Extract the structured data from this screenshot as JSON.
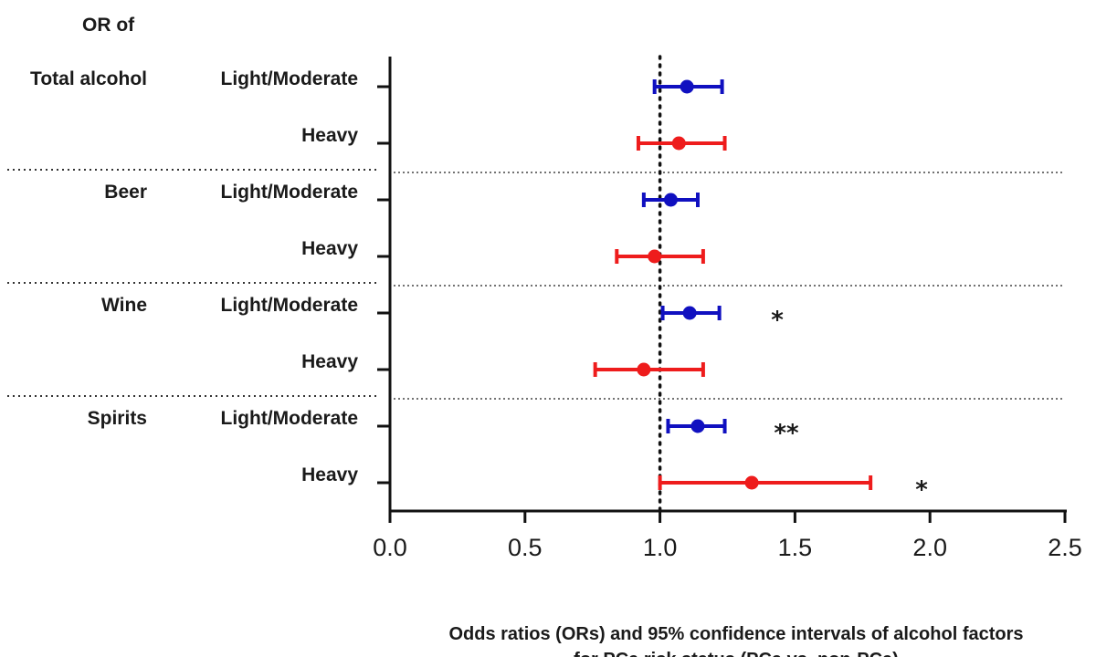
{
  "chart_data": {
    "type": "forest",
    "row_header": "OR of",
    "xlabel_lines": [
      "Odds ratios (ORs) and 95% confidence intervals of alcohol factors",
      "for PCa risk status (PCa vs. non-PCa)"
    ],
    "xlim": [
      0.0,
      2.5
    ],
    "xticks": [
      "0.0",
      "0.5",
      "1.0",
      "1.5",
      "2.0",
      "2.5"
    ],
    "reference_line": 1.0,
    "colors": {
      "light_moderate": "#1010c0",
      "heavy": "#ee1c1c"
    },
    "groups": [
      {
        "name": "Total alcohol",
        "rows": [
          {
            "label": "Light/Moderate",
            "or": 1.1,
            "lo": 0.98,
            "hi": 1.23,
            "sig": ""
          },
          {
            "label": "Heavy",
            "or": 1.07,
            "lo": 0.92,
            "hi": 1.24,
            "sig": ""
          }
        ]
      },
      {
        "name": "Beer",
        "rows": [
          {
            "label": "Light/Moderate",
            "or": 1.04,
            "lo": 0.94,
            "hi": 1.14,
            "sig": ""
          },
          {
            "label": "Heavy",
            "or": 0.98,
            "lo": 0.84,
            "hi": 1.16,
            "sig": ""
          }
        ]
      },
      {
        "name": "Wine",
        "rows": [
          {
            "label": "Light/Moderate",
            "or": 1.11,
            "lo": 1.01,
            "hi": 1.22,
            "sig": "*"
          },
          {
            "label": "Heavy",
            "or": 0.94,
            "lo": 0.76,
            "hi": 1.16,
            "sig": ""
          }
        ]
      },
      {
        "name": "Spirits",
        "rows": [
          {
            "label": "Light/Moderate",
            "or": 1.14,
            "lo": 1.03,
            "hi": 1.24,
            "sig": "**"
          },
          {
            "label": "Heavy",
            "or": 1.34,
            "lo": 1.0,
            "hi": 1.78,
            "sig": "*"
          }
        ]
      }
    ]
  }
}
